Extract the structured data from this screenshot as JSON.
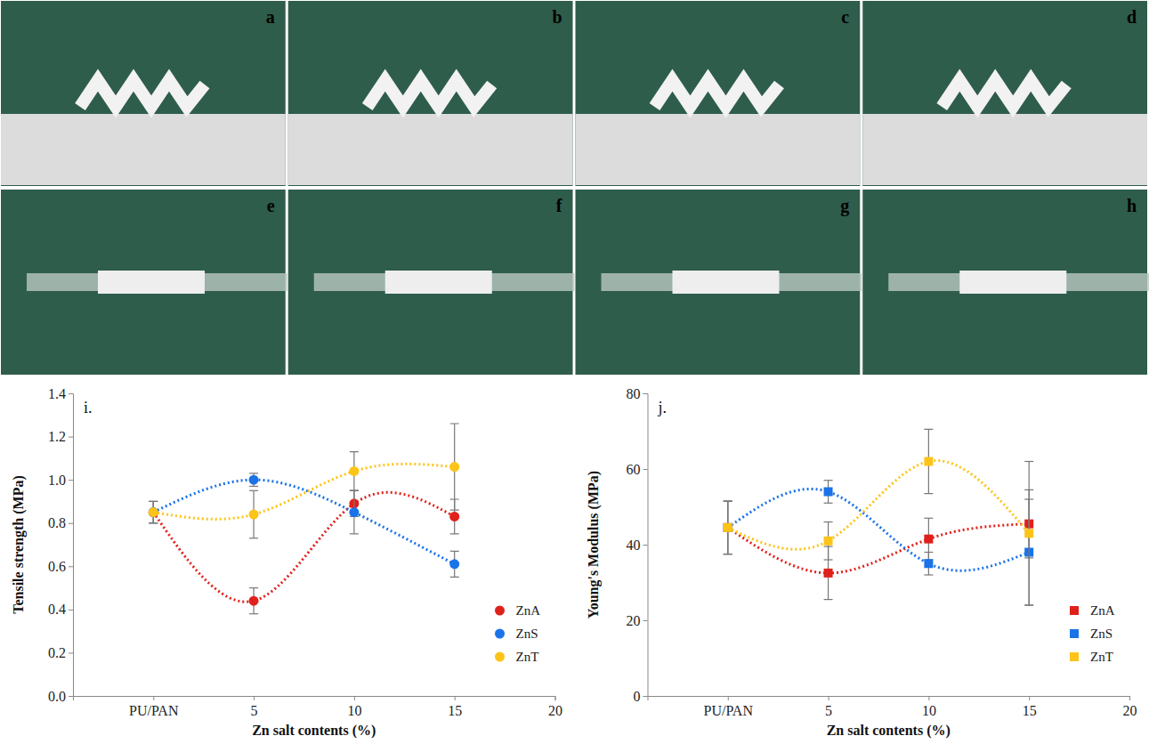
{
  "photo_panels": {
    "labels": [
      "a",
      "b",
      "c",
      "d",
      "e",
      "f",
      "g",
      "h"
    ]
  },
  "chart_data": [
    {
      "type": "scatter",
      "title": "i.",
      "x_label": "Zn salt contents (%)",
      "y_label": "Tensile strength (MPa)",
      "x": [
        0,
        5,
        10,
        15
      ],
      "xlim": [
        -4,
        20
      ],
      "xticks": [
        {
          "value": 0,
          "label": "PU/PAN"
        },
        5,
        10,
        15,
        20
      ],
      "ylim": [
        0,
        1.4
      ],
      "yticks": [
        {
          "value": 0,
          "label": "0.0"
        },
        0.2,
        0.4,
        0.6,
        0.8,
        {
          "value": 1,
          "label": "1.0"
        },
        1.2,
        1.4
      ],
      "grid": false,
      "legend": "lower right",
      "series": [
        {
          "name": "ZnA",
          "color": "#e0211b",
          "marker": "circle",
          "line_style": "dotted",
          "values": [
            0.85,
            0.44,
            0.89,
            0.83
          ],
          "errors": [
            0.05,
            0.06,
            0.06,
            0.08
          ]
        },
        {
          "name": "ZnS",
          "color": "#1a73e8",
          "marker": "circle",
          "line_style": "dotted",
          "values": [
            0.85,
            1.0,
            0.85,
            0.61
          ],
          "errors": [
            0.05,
            0.03,
            0.1,
            0.06
          ]
        },
        {
          "name": "ZnT",
          "color": "#fcc419",
          "marker": "circle",
          "line_style": "dotted",
          "values": [
            0.85,
            0.84,
            1.04,
            1.06
          ],
          "errors": [
            0.05,
            0.11,
            0.09,
            0.2
          ]
        }
      ]
    },
    {
      "type": "scatter",
      "title": "j.",
      "x_label": "Zn salt contents (%)",
      "y_label": "Young's Modulus (MPa)",
      "x": [
        0,
        5,
        10,
        15
      ],
      "xlim": [
        -4,
        20
      ],
      "xticks": [
        {
          "value": 0,
          "label": "PU/PAN"
        },
        5,
        10,
        15,
        20
      ],
      "ylim": [
        0,
        80
      ],
      "yticks": [
        0,
        20,
        40,
        60,
        80
      ],
      "grid": false,
      "legend": "lower right",
      "series": [
        {
          "name": "ZnA",
          "color": "#e0211b",
          "marker": "square",
          "line_style": "dotted",
          "values": [
            44.5,
            32.5,
            41.5,
            45.5
          ],
          "errors": [
            7,
            7,
            5.5,
            9
          ]
        },
        {
          "name": "ZnS",
          "color": "#1a73e8",
          "marker": "square",
          "line_style": "dotted",
          "values": [
            44.5,
            54,
            35,
            38
          ],
          "errors": [
            7,
            3,
            3,
            14
          ]
        },
        {
          "name": "ZnT",
          "color": "#fcc419",
          "marker": "square",
          "line_style": "dotted",
          "values": [
            44.5,
            41,
            62,
            43
          ],
          "errors": [
            7,
            5,
            8.5,
            19
          ]
        }
      ]
    }
  ]
}
